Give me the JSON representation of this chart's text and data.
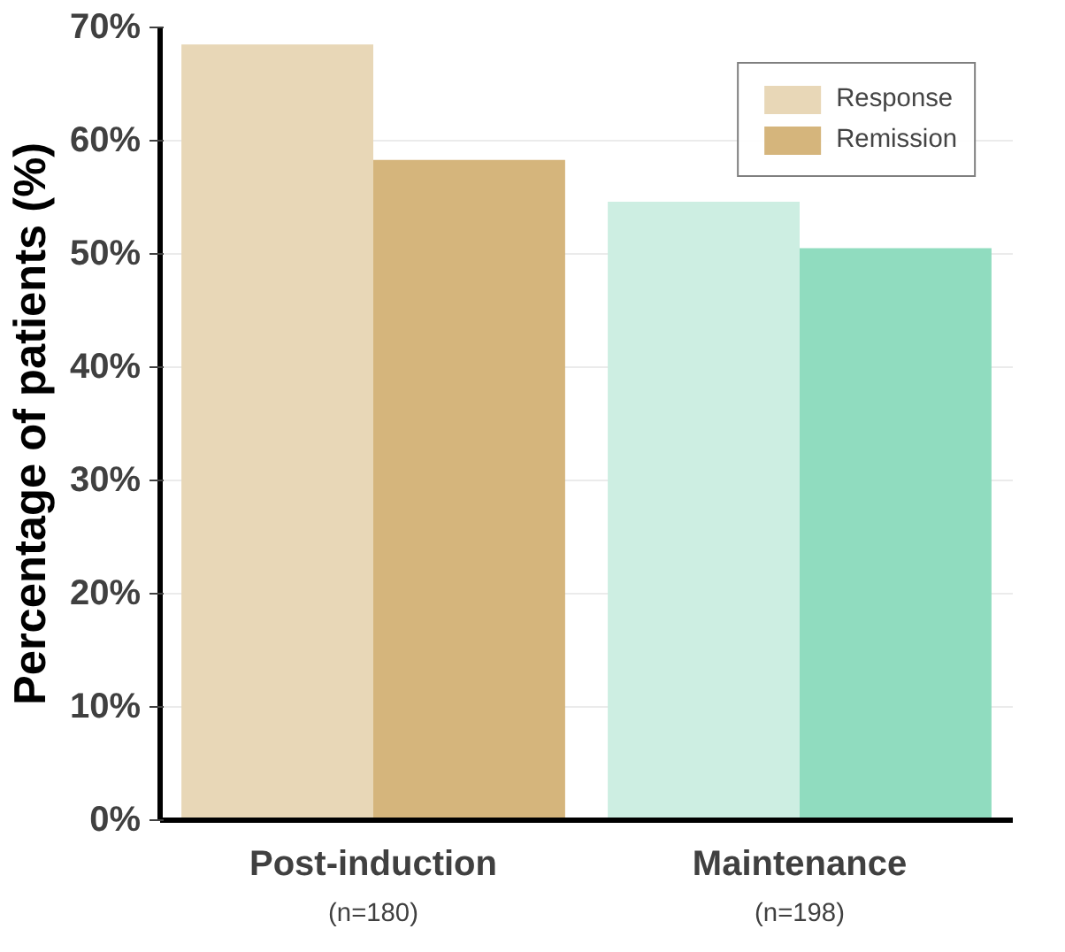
{
  "chart_data": {
    "type": "bar",
    "ylabel": "Percentage of patients (%)",
    "categories": [
      "Post-induction\n(n=180)",
      "Maintenance\n(n=198)"
    ],
    "series": [
      {
        "name": "Response",
        "colors": [
          "#e8d7b7",
          "#cdeee2"
        ],
        "values": [
          68.5,
          54.6
        ]
      },
      {
        "name": "Remission",
        "colors": [
          "#d5b57c",
          "#90dcbf"
        ],
        "values": [
          58.3,
          50.5
        ]
      }
    ],
    "ylim": [
      0,
      70
    ],
    "yticks": [
      {
        "value": 0,
        "label": "0%"
      },
      {
        "value": 10,
        "label": "10%"
      },
      {
        "value": 20,
        "label": "20%"
      },
      {
        "value": 30,
        "label": "30%"
      },
      {
        "value": 40,
        "label": "40%"
      },
      {
        "value": 50,
        "label": "50%"
      },
      {
        "value": 60,
        "label": "60%"
      },
      {
        "value": 70,
        "label": "70%"
      }
    ],
    "grid": "y",
    "legend": "top right"
  }
}
